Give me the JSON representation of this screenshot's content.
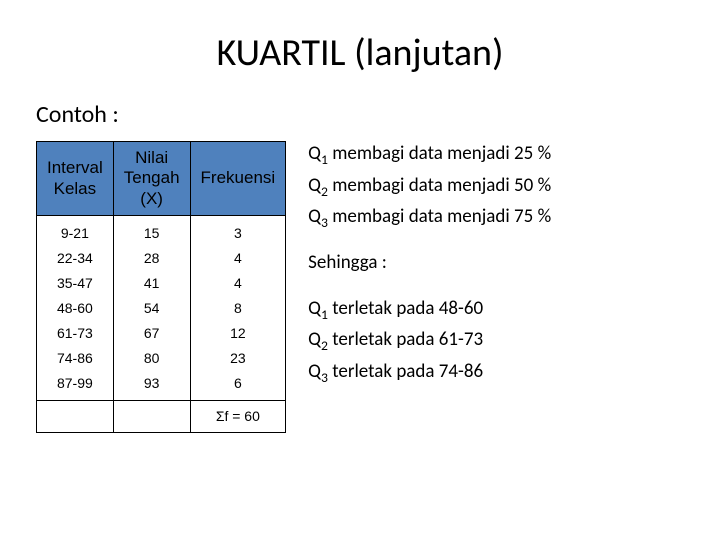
{
  "title": "KUARTIL (lanjutan)",
  "subtitle": "Contoh :",
  "table": {
    "type": "table",
    "header_bg": "#4f81bd",
    "border_color": "#000000",
    "columns": [
      {
        "label_lines": [
          "Interval",
          "Kelas"
        ]
      },
      {
        "label_lines": [
          "Nilai",
          "Tengah",
          "(X)"
        ]
      },
      {
        "label_lines": [
          "Frekuensi"
        ]
      }
    ],
    "rows": [
      [
        "9-21",
        "15",
        "3"
      ],
      [
        "22-34",
        "28",
        "4"
      ],
      [
        "35-47",
        "41",
        "4"
      ],
      [
        "48-60",
        "54",
        "8"
      ],
      [
        "61-73",
        "67",
        "12"
      ],
      [
        "74-86",
        "80",
        "23"
      ],
      [
        "87-99",
        "93",
        "6"
      ]
    ],
    "footer_cell": "Σf = 60"
  },
  "notes": {
    "q_defs": [
      {
        "sub": "1",
        "text": " membagi data menjadi 25 %"
      },
      {
        "sub": "2",
        "text": " membagi data menjadi 50 %"
      },
      {
        "sub": "3",
        "text": " membagi data menjadi 75 %"
      }
    ],
    "sehingga": "Sehingga :",
    "q_locs": [
      {
        "sub": "1",
        "text": " terletak pada 48-60"
      },
      {
        "sub": "2",
        "text": " terletak pada 61-73"
      },
      {
        "sub": "3",
        "text": " terletak pada 74-86"
      }
    ]
  }
}
